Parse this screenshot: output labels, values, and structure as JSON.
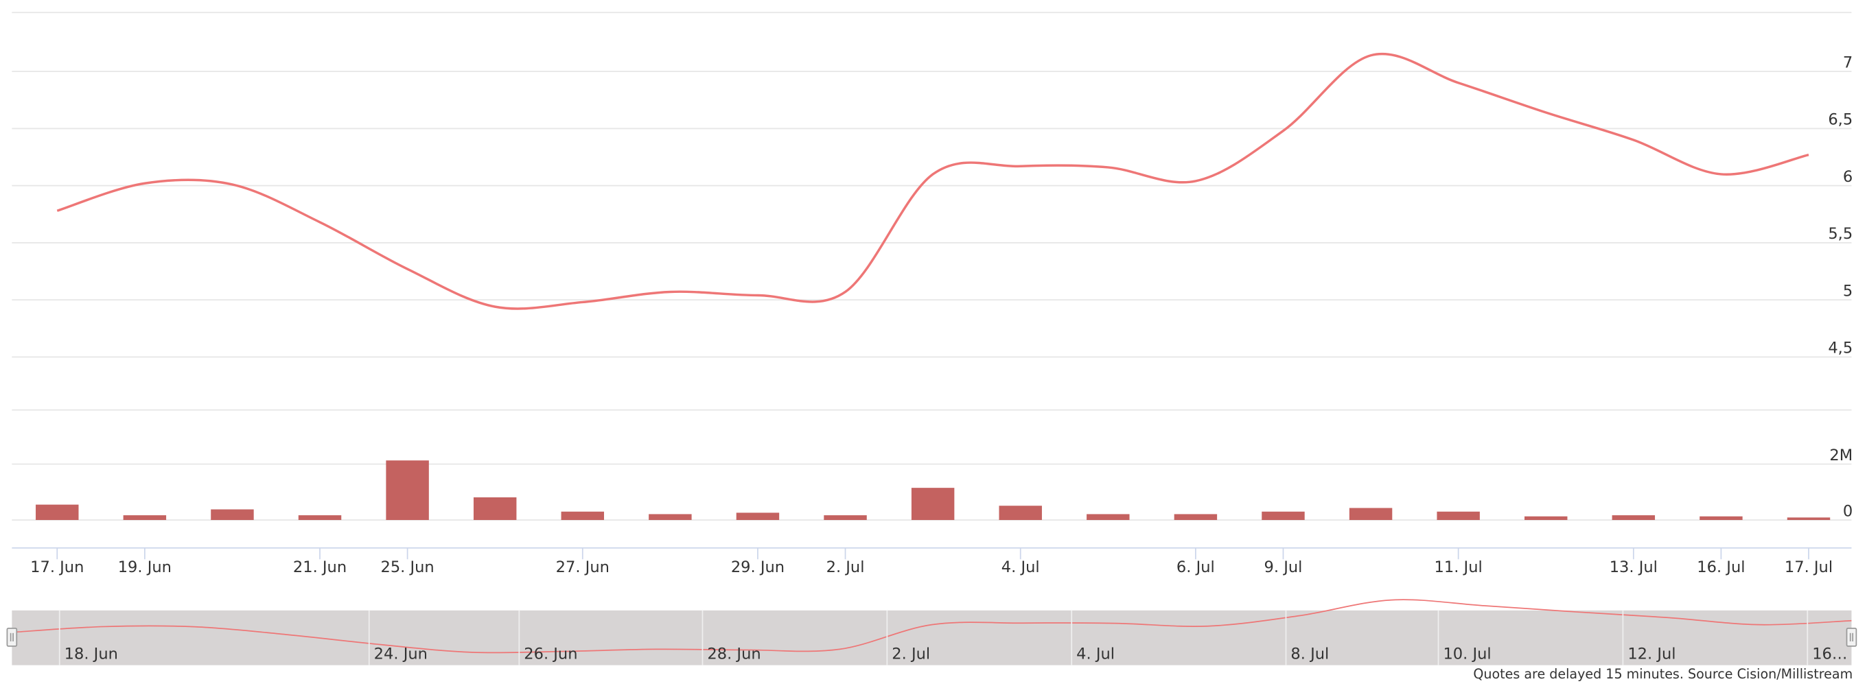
{
  "chart_data": {
    "type": "stock",
    "categories": [
      "17. Jun",
      "19. Jun",
      null,
      "21. Jun",
      "25. Jun",
      null,
      "27. Jun",
      null,
      "29. Jun",
      "2. Jul",
      null,
      "4. Jul",
      null,
      "6. Jul",
      "9. Jul",
      null,
      "11. Jul",
      null,
      "13. Jul",
      "16. Jul",
      "17. Jul"
    ],
    "series": [
      {
        "type": "line",
        "color": "#ee7676",
        "values": [
          5.78,
          6.02,
          6.01,
          5.68,
          5.27,
          4.94,
          4.98,
          5.07,
          5.04,
          5.07,
          6.1,
          6.17,
          6.16,
          6.04,
          6.48,
          7.14,
          6.9,
          6.64,
          6.4,
          6.1,
          6.27
        ]
      },
      {
        "type": "bar",
        "axis": "y2",
        "color": "#c46260",
        "values": [
          550000,
          170000,
          380000,
          170000,
          2130000,
          810000,
          300000,
          210000,
          260000,
          170000,
          1150000,
          510000,
          210000,
          210000,
          300000,
          430000,
          300000,
          130000,
          170000,
          130000,
          90000
        ]
      }
    ],
    "ylim": [
      4.5,
      7.5
    ],
    "yticks": [
      {
        "value": 4.5,
        "label": "4,5"
      },
      5,
      {
        "value": 5.5,
        "label": "5,5"
      },
      6,
      {
        "value": 6.5,
        "label": "6,5"
      },
      7
    ],
    "y2lim": [
      0,
      4000000
    ],
    "y2ticks": [
      0,
      {
        "value": 2000000,
        "label": "2M"
      }
    ],
    "grid": true,
    "navigator": {
      "labels": [
        "18. Jun",
        "24. Jun",
        "26. Jun",
        "28. Jun",
        "2. Jul",
        "4. Jul",
        "8. Jul",
        "10. Jul",
        "12. Jul",
        "16…"
      ]
    },
    "source": "Quotes are delayed 15 minutes. Source Cision/Millistream"
  }
}
